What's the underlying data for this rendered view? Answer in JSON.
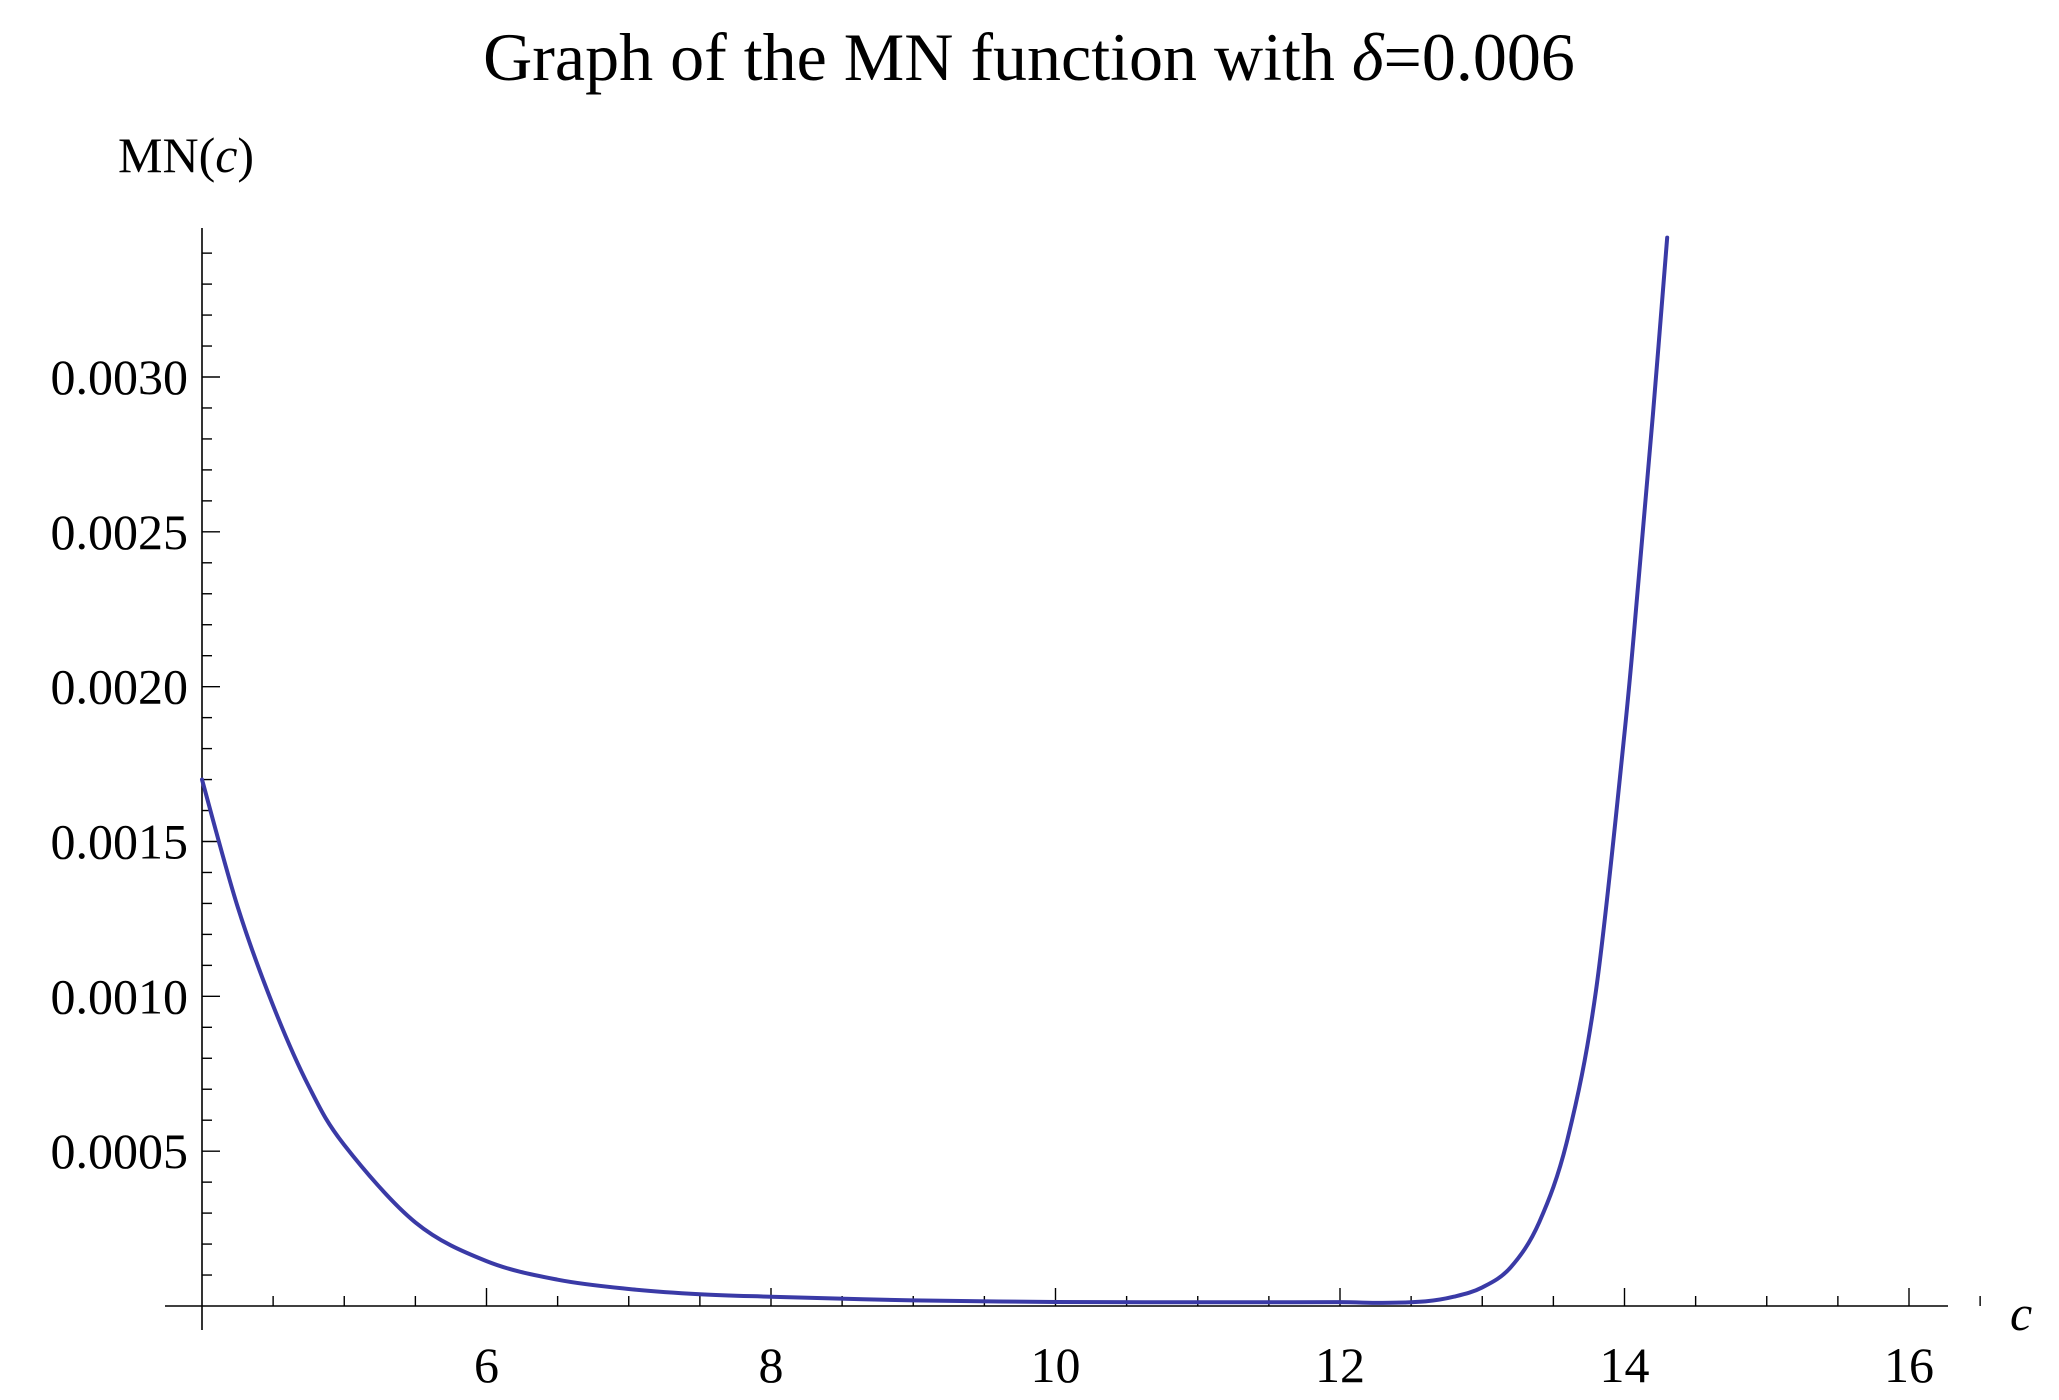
{
  "chart_data": {
    "type": "line",
    "title": {
      "prefix": "Graph of the MN function with ",
      "symbol": "δ",
      "suffix": "=0.006"
    },
    "ylabel": {
      "prefix": "MN(",
      "var": "c",
      "suffix": ")"
    },
    "xlabel": "c",
    "xlim": [
      4,
      16.5
    ],
    "ylim": [
      0,
      0.00345
    ],
    "x_ticks": [
      {
        "value": 6,
        "label": "6"
      },
      {
        "value": 8,
        "label": "8"
      },
      {
        "value": 10,
        "label": "10"
      },
      {
        "value": 12,
        "label": "12"
      },
      {
        "value": 14,
        "label": "14"
      },
      {
        "value": 16,
        "label": "16"
      }
    ],
    "y_ticks": [
      {
        "value": 0.0005,
        "label": "0.0005"
      },
      {
        "value": 0.001,
        "label": "0.0010"
      },
      {
        "value": 0.0015,
        "label": "0.0015"
      },
      {
        "value": 0.002,
        "label": "0.0020"
      },
      {
        "value": 0.0025,
        "label": "0.0025"
      },
      {
        "value": 0.003,
        "label": "0.0030"
      }
    ],
    "x_minor_step": 0.5,
    "y_minor_step": 0.0001,
    "grid": false,
    "series": [
      {
        "color": "#3a3aa6",
        "x": [
          4.0,
          4.25,
          4.5,
          4.75,
          5.0,
          5.5,
          6.0,
          6.5,
          7.0,
          7.5,
          8.0,
          9.0,
          10.0,
          11.0,
          11.5,
          12.0,
          12.3,
          12.6,
          12.8,
          13.0,
          13.2,
          13.4,
          13.6,
          13.8,
          14.0,
          14.1,
          14.2,
          14.3
        ],
        "y": [
          0.0017,
          0.00129,
          0.00097,
          0.00071,
          0.00052,
          0.00027,
          0.000145,
          8.5e-05,
          5.5e-05,
          3.8e-05,
          3e-05,
          1.8e-05,
          1.3e-05,
          1.2e-05,
          1.2e-05,
          1.25e-05,
          1e-05,
          1.5e-05,
          3e-05,
          6e-05,
          0.000125,
          0.00027,
          0.00054,
          0.00102,
          0.00185,
          0.00235,
          0.00288,
          0.00345
        ]
      }
    ]
  }
}
